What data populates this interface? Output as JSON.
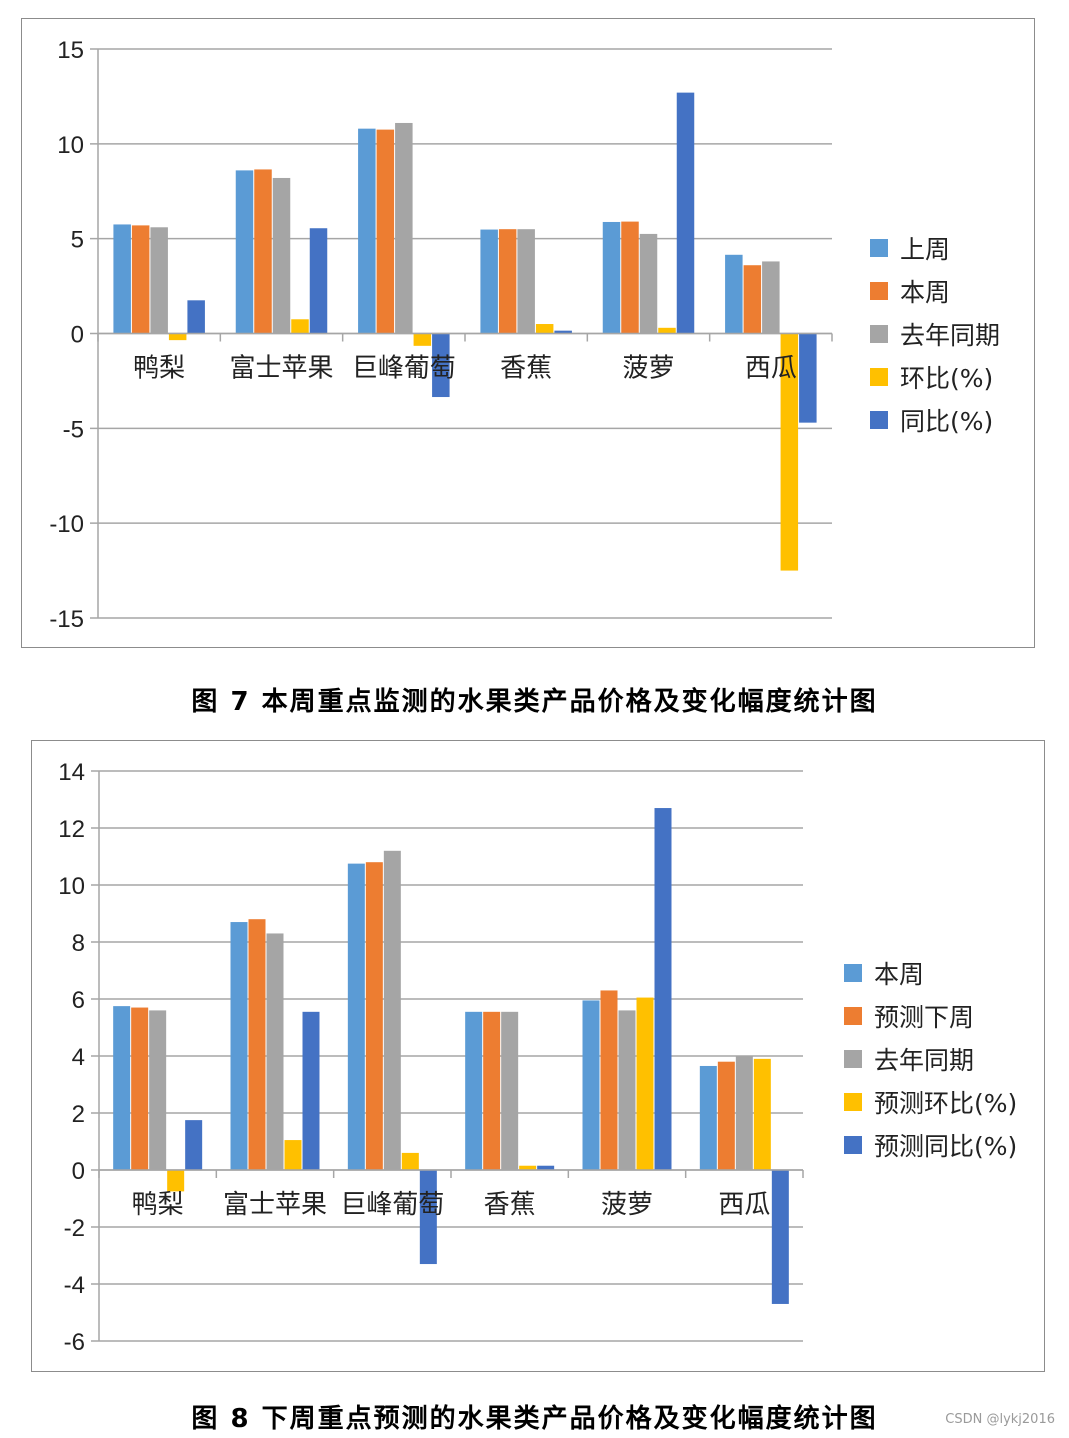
{
  "colors": {
    "c1": "#5b9bd5",
    "c2": "#ed7d31",
    "c3": "#a5a5a5",
    "c4": "#ffc000",
    "c5": "#4472c4"
  },
  "chart_data": [
    {
      "type": "bar",
      "caption": "图 7  本周重点监测的水果类产品价格及变化幅度统计图",
      "categories": [
        "鸭梨",
        "富士苹果",
        "巨峰葡萄",
        "香蕉",
        "菠萝",
        "西瓜"
      ],
      "ylim": [
        -15,
        15
      ],
      "yticks": [
        15,
        10,
        5,
        0,
        -5,
        -10,
        -15
      ],
      "ytick_labels": [
        "15",
        "10",
        "5",
        "0",
        "-5",
        "-10",
        "-15"
      ],
      "grid": true,
      "legend_position": "right",
      "series": [
        {
          "name": "上周",
          "values": [
            5.75,
            8.6,
            10.8,
            5.48,
            5.88,
            4.15
          ]
        },
        {
          "name": "本周",
          "values": [
            5.7,
            8.65,
            10.75,
            5.5,
            5.9,
            3.6
          ]
        },
        {
          "name": "去年同期",
          "values": [
            5.6,
            8.2,
            11.1,
            5.5,
            5.25,
            3.8
          ]
        },
        {
          "name": "环比(%)",
          "values": [
            -0.35,
            0.75,
            -0.65,
            0.5,
            0.3,
            -12.5
          ]
        },
        {
          "name": "同比(%)",
          "values": [
            1.75,
            5.55,
            -3.35,
            0.15,
            12.7,
            -4.7
          ]
        }
      ]
    },
    {
      "type": "bar",
      "caption": "图 8  下周重点预测的水果类产品价格及变化幅度统计图",
      "categories": [
        "鸭梨",
        "富士苹果",
        "巨峰葡萄",
        "香蕉",
        "菠萝",
        "西瓜"
      ],
      "ylim": [
        -6,
        14
      ],
      "yticks": [
        14,
        12,
        10,
        8,
        6,
        4,
        2,
        0,
        -2,
        -4,
        -6
      ],
      "ytick_labels": [
        "14",
        "12",
        "10",
        "8",
        "6",
        "4",
        "2",
        "0",
        "-2",
        "-4",
        "-6"
      ],
      "grid": true,
      "legend_position": "right",
      "series": [
        {
          "name": "本周",
          "values": [
            5.75,
            8.7,
            10.75,
            5.55,
            5.95,
            3.65
          ]
        },
        {
          "name": "预测下周",
          "values": [
            5.7,
            8.8,
            10.8,
            5.55,
            6.3,
            3.8
          ]
        },
        {
          "name": "去年同期",
          "values": [
            5.6,
            8.3,
            11.2,
            5.55,
            5.6,
            4.0
          ]
        },
        {
          "name": "预测环比(%)",
          "values": [
            -0.75,
            1.05,
            0.6,
            0.15,
            6.05,
            3.9
          ]
        },
        {
          "name": "预测同比(%)",
          "values": [
            1.75,
            5.55,
            -3.3,
            0.15,
            12.7,
            -4.7
          ]
        }
      ]
    }
  ],
  "watermark": "CSDN @lykj2016"
}
